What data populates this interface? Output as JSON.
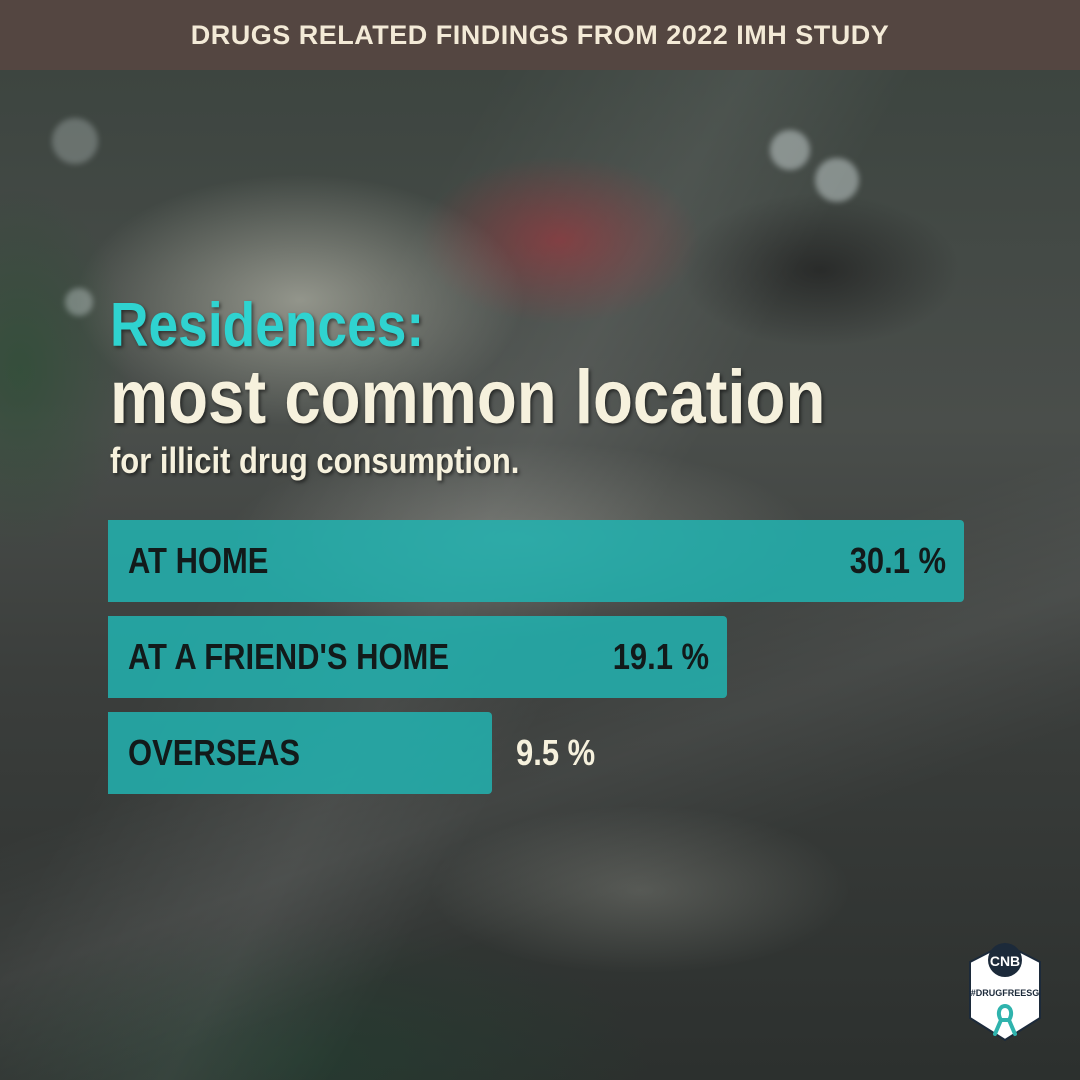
{
  "banner": {
    "title": "DRUGS RELATED FINDINGS FROM 2022 IMH STUDY"
  },
  "headline": {
    "accent": "Residences:",
    "main": "most common location",
    "sub": "for illicit drug consumption."
  },
  "colors": {
    "banner_bg": "#544641",
    "accent": "#2fd3d0",
    "bar": "#22b2b0",
    "text_light": "#f6f1dd"
  },
  "badge": {
    "org": "CNB",
    "hashtag": "#DRUGFREESG"
  },
  "chart_data": {
    "type": "bar",
    "orientation": "horizontal",
    "categories": [
      "AT HOME",
      "AT A FRIEND'S HOME",
      "OVERSEAS"
    ],
    "values": [
      30.1,
      19.1,
      9.5
    ],
    "value_labels": [
      "30.1 %",
      "19.1 %",
      "9.5 %"
    ],
    "unit": "%",
    "title": "",
    "xlabel": "",
    "ylabel": ""
  }
}
